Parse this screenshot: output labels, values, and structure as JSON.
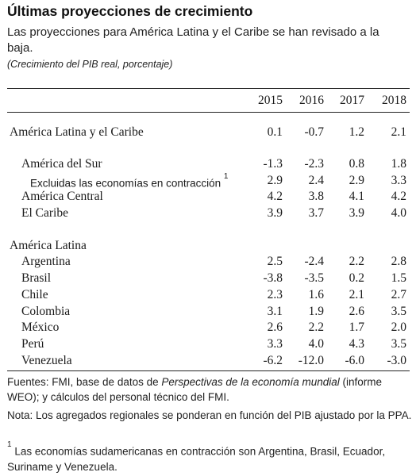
{
  "title": "Últimas proyecciones de crecimiento",
  "subtitle": "Las proyecciones para América Latina y el Caribe se han revisado a la baja.",
  "units": "(Crecimiento del PIB real, porcentaje)",
  "table": {
    "years": [
      "2015",
      "2016",
      "2017",
      "2018"
    ],
    "rows": [
      {
        "label": "América Latina y el Caribe",
        "level": 0,
        "values": [
          "0.1",
          "-0.7",
          "1.2",
          "2.1"
        ]
      },
      {
        "label": "América del Sur",
        "level": 1,
        "values": [
          "-1.3",
          "-2.3",
          "0.8",
          "1.8"
        ]
      },
      {
        "label": "Excluidas las economías en contracción",
        "footnote": "1",
        "level": 2,
        "values": [
          "2.9",
          "2.4",
          "2.9",
          "3.3"
        ]
      },
      {
        "label": "América Central",
        "level": 1,
        "values": [
          "4.2",
          "3.8",
          "4.1",
          "4.2"
        ]
      },
      {
        "label": "El Caribe",
        "level": 1,
        "values": [
          "3.9",
          "3.7",
          "3.9",
          "4.0"
        ]
      },
      {
        "label": "América Latina",
        "level": 0,
        "values": []
      },
      {
        "label": "Argentina",
        "level": 1,
        "values": [
          "2.5",
          "-2.4",
          "2.2",
          "2.8"
        ]
      },
      {
        "label": "Brasil",
        "level": 1,
        "values": [
          "-3.8",
          "-3.5",
          "0.2",
          "1.5"
        ]
      },
      {
        "label": "Chile",
        "level": 1,
        "values": [
          "2.3",
          "1.6",
          "2.1",
          "2.7"
        ]
      },
      {
        "label": "Colombia",
        "level": 1,
        "values": [
          "3.1",
          "1.9",
          "2.6",
          "3.5"
        ]
      },
      {
        "label": "México",
        "level": 1,
        "values": [
          "2.6",
          "2.2",
          "1.7",
          "2.0"
        ]
      },
      {
        "label": "Perú",
        "level": 1,
        "values": [
          "3.3",
          "4.0",
          "4.3",
          "3.5"
        ]
      },
      {
        "label": "Venezuela",
        "level": 1,
        "values": [
          "-6.2",
          "-12.0",
          "-6.0",
          "-3.0"
        ]
      }
    ]
  },
  "notes": {
    "sources_prefix": "Fuentes: FMI, base de datos de ",
    "sources_italic": "Perspectivas de la economía mundial",
    "sources_suffix": " (informe WEO); y cálculos del personal técnico del FMI.",
    "note": "Nota: Los agregados regionales se ponderan en función del PIB ajustado por la PPA.",
    "footnote_mark": "1",
    "footnote_text": " Las economías sudamericanas en contracción son Argentina, Brasil, Ecuador, Suriname y Venezuela."
  }
}
